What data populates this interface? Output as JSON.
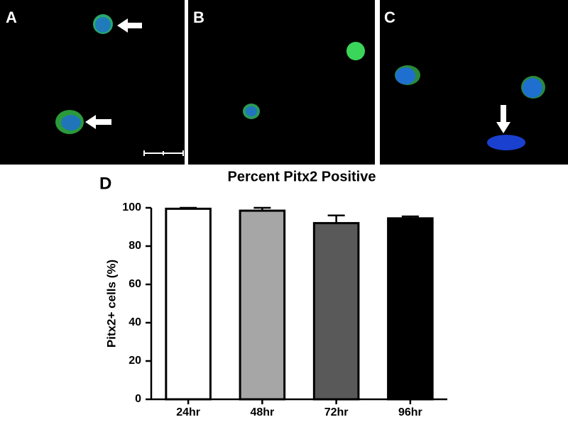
{
  "panels": [
    {
      "label": "A"
    },
    {
      "label": "B"
    },
    {
      "label": "C"
    }
  ],
  "chart_data": {
    "type": "bar",
    "panel_label": "D",
    "title": "Percent Pitx2 Positive",
    "y_label": "Pitx2+ cells (%)",
    "categories": [
      "24hr",
      "48hr",
      "72hr",
      "96hr"
    ],
    "values": [
      99.5,
      98.5,
      92,
      94.5
    ],
    "errors": [
      0.5,
      1.5,
      4,
      1
    ],
    "colors": [
      "#ffffff",
      "#a6a6a6",
      "#595959",
      "#000000"
    ],
    "ylim": [
      0,
      100
    ],
    "yticks": [
      0,
      20,
      40,
      60,
      80,
      100
    ],
    "grid": false
  }
}
